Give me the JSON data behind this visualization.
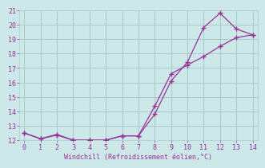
{
  "xlabel": "Windchill (Refroidissement éolien,°C)",
  "background_color": "#cce8e8",
  "grid_color": "#aacccc",
  "line_color": "#993399",
  "line1_x": [
    0,
    1,
    2,
    3,
    4,
    5,
    6,
    7,
    8,
    9,
    10,
    11,
    12,
    13,
    14
  ],
  "line1_y": [
    12.5,
    12.1,
    12.4,
    12.0,
    12.0,
    12.0,
    12.3,
    12.3,
    13.8,
    16.1,
    17.4,
    19.8,
    20.8,
    19.7,
    19.3
  ],
  "line2_x": [
    0,
    1,
    2,
    3,
    4,
    5,
    6,
    7,
    8,
    9,
    10,
    11,
    12,
    13,
    14
  ],
  "line2_y": [
    12.5,
    12.1,
    12.35,
    12.0,
    12.0,
    12.0,
    12.3,
    12.3,
    14.35,
    16.6,
    17.2,
    17.8,
    18.5,
    19.1,
    19.3
  ],
  "xlim": [
    -0.3,
    14.3
  ],
  "ylim": [
    12,
    21
  ],
  "xticks": [
    0,
    1,
    2,
    3,
    4,
    5,
    6,
    7,
    8,
    9,
    10,
    11,
    12,
    13,
    14
  ],
  "yticks": [
    12,
    13,
    14,
    15,
    16,
    17,
    18,
    19,
    20,
    21
  ]
}
